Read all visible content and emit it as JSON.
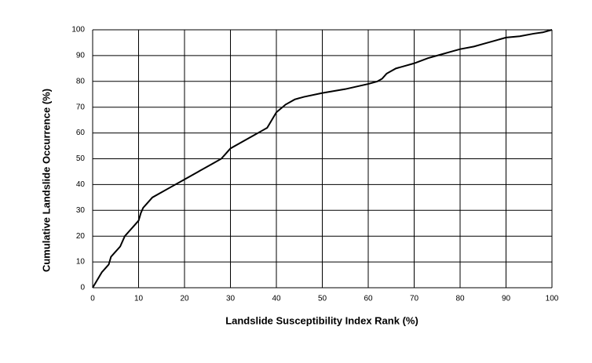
{
  "chart_data": {
    "type": "line",
    "xlabel": "Landslide Susceptibility Index Rank (%)",
    "ylabel": "Cumulative Landslide Occurrence (%)",
    "xlim": [
      0,
      100
    ],
    "ylim": [
      0,
      100
    ],
    "xticks": [
      0,
      10,
      20,
      30,
      40,
      50,
      60,
      70,
      80,
      90,
      100
    ],
    "yticks": [
      0,
      10,
      20,
      30,
      40,
      50,
      60,
      70,
      80,
      90,
      100
    ],
    "grid": true,
    "series": [
      {
        "color": "#000000",
        "x": [
          0,
          1,
          2,
          3,
          3.5,
          4,
          5,
          6,
          7,
          8,
          9,
          10,
          10.5,
          11,
          12,
          13,
          15,
          17,
          20,
          23,
          26,
          28,
          29,
          30,
          32,
          35,
          37,
          38,
          39,
          40,
          42,
          44,
          46,
          50,
          55,
          60,
          62,
          63,
          64,
          66,
          68,
          70,
          73,
          76,
          78,
          80,
          83,
          85,
          88,
          90,
          93,
          96,
          98,
          100
        ],
        "values": [
          0,
          3,
          6,
          8,
          9,
          12,
          14,
          16,
          20,
          22,
          24,
          26,
          29,
          31,
          33,
          35,
          37,
          39,
          42,
          45,
          48,
          50,
          52,
          54,
          56,
          59,
          61,
          62,
          65,
          68,
          71,
          73,
          74,
          75.5,
          77,
          79,
          80,
          81,
          83,
          85,
          86,
          87,
          89,
          90.5,
          91.5,
          92.5,
          93.5,
          94.5,
          96,
          97,
          97.5,
          98.5,
          99,
          100
        ]
      }
    ]
  }
}
